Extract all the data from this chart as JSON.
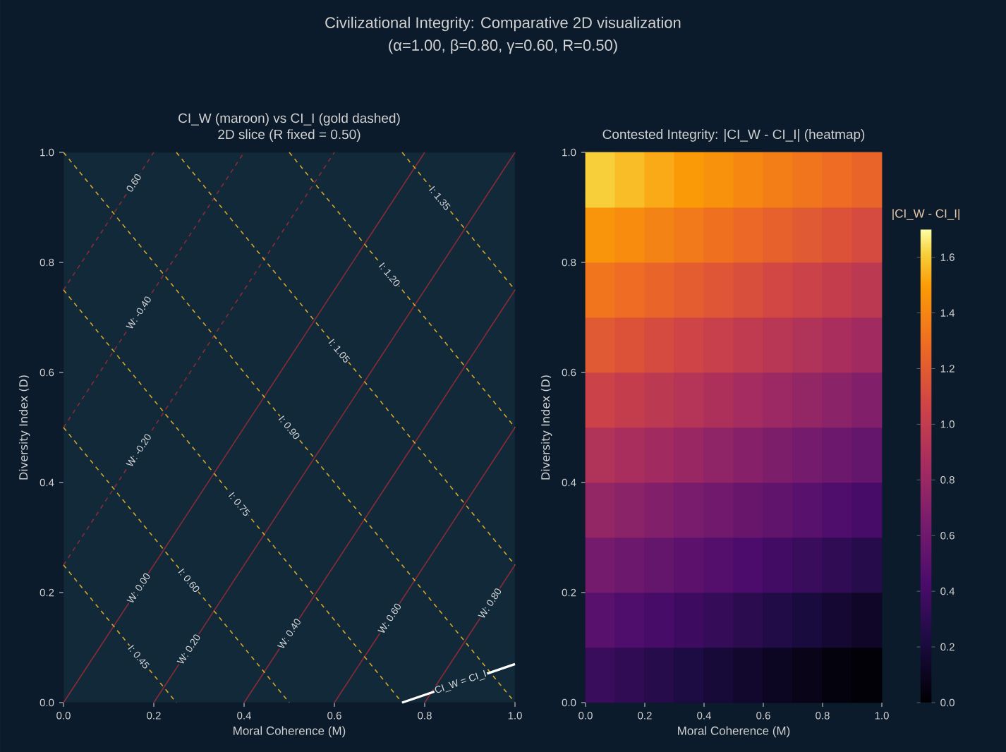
{
  "chart_data": [
    {
      "type": "other",
      "title": "Civilizational Integrity: Comparative 2D visualization",
      "subtitle": "(α=1.00, β=0.80, γ=0.60, R=0.50)"
    },
    {
      "type": "line",
      "title": "CI_W (maroon) vs CI_I (gold dashed)",
      "subtitle": "2D slice (R fixed = 0.50)",
      "xlabel": "Moral Coherence (M)",
      "ylabel": "Diversity Index (D)",
      "xlim": [
        0,
        1
      ],
      "ylim": [
        0,
        1
      ],
      "xticks": [
        {
          "value": 0,
          "label": "0.0"
        },
        {
          "value": 0.2,
          "label": "0.2"
        },
        {
          "value": 0.4,
          "label": "0.4"
        },
        {
          "value": 0.6,
          "label": "0.6"
        },
        {
          "value": 0.8,
          "label": "0.8"
        },
        {
          "value": 1,
          "label": "1.0"
        }
      ],
      "yticks": [
        {
          "value": 0,
          "label": "0.0"
        },
        {
          "value": 0.2,
          "label": "0.2"
        },
        {
          "value": 0.4,
          "label": "0.4"
        },
        {
          "value": 0.6,
          "label": "0.6"
        },
        {
          "value": 0.8,
          "label": "0.8"
        },
        {
          "value": 1,
          "label": "1.0"
        }
      ],
      "series": [
        {
          "name": "0.60",
          "color": "#8b2a35",
          "line_style": "dashed",
          "x": [
            0,
            0.2
          ],
          "values": [
            0.75,
            1
          ]
        },
        {
          "name": "W: -0.40",
          "color": "#8b2a35",
          "line_style": "dashed",
          "x": [
            0,
            0.4
          ],
          "values": [
            0.5,
            1
          ]
        },
        {
          "name": "W: -0.20",
          "color": "#8b2a35",
          "line_style": "dashed",
          "x": [
            0,
            0.6
          ],
          "values": [
            0.25,
            1
          ]
        },
        {
          "name": "W: 0.00",
          "color": "#8b2a35",
          "line_style": "solid",
          "x": [
            0,
            0.8
          ],
          "values": [
            0,
            1
          ]
        },
        {
          "name": "W: 0.20",
          "color": "#8b2a35",
          "line_style": "solid",
          "x": [
            0.2,
            1
          ],
          "values": [
            0,
            1
          ]
        },
        {
          "name": "W: 0.40",
          "color": "#8b2a35",
          "line_style": "solid",
          "x": [
            0.4,
            1
          ],
          "values": [
            0,
            0.75
          ]
        },
        {
          "name": "W: 0.60",
          "color": "#8b2a35",
          "line_style": "solid",
          "x": [
            0.6,
            1
          ],
          "values": [
            0,
            0.5
          ]
        },
        {
          "name": "W: 0.80",
          "color": "#8b2a35",
          "line_style": "solid",
          "x": [
            0.8,
            1
          ],
          "values": [
            0,
            0.25
          ]
        },
        {
          "name": "I: 0.45",
          "color": "#d4a62a",
          "line_style": "dashed",
          "x": [
            0,
            0.25
          ],
          "values": [
            0.25,
            0
          ]
        },
        {
          "name": "I: 0.60",
          "color": "#d4a62a",
          "line_style": "dashed",
          "x": [
            0,
            0.5
          ],
          "values": [
            0.5,
            0
          ]
        },
        {
          "name": "I: 0.75",
          "color": "#d4a62a",
          "line_style": "dashed",
          "x": [
            0,
            0.75
          ],
          "values": [
            0.75,
            0
          ]
        },
        {
          "name": "I: 0.90",
          "color": "#d4a62a",
          "line_style": "dashed",
          "x": [
            0,
            1
          ],
          "values": [
            1,
            0
          ]
        },
        {
          "name": "I: 1.05",
          "color": "#d4a62a",
          "line_style": "dashed",
          "x": [
            0.25,
            1
          ],
          "values": [
            1,
            0.25
          ]
        },
        {
          "name": "I: 1.20",
          "color": "#d4a62a",
          "line_style": "dashed",
          "x": [
            0.5,
            1
          ],
          "values": [
            1,
            0.5
          ]
        },
        {
          "name": "I: 1.35",
          "color": "#d4a62a",
          "line_style": "dashed",
          "x": [
            0.75,
            1
          ],
          "values": [
            1,
            0.75
          ]
        },
        {
          "name": "CI_W = CI_I",
          "color": "#ffffff",
          "line_style": "solid",
          "x": [
            0.75,
            1
          ],
          "values": [
            0,
            0.07
          ]
        }
      ]
    },
    {
      "type": "heatmap",
      "title": "Contested Integrity: |CI_W - CI_I| (heatmap)",
      "xlabel": "Moral Coherence (M)",
      "ylabel": "Diversity Index (D)",
      "clabel": "|CI_W - CI_I|",
      "xlim": [
        0,
        1
      ],
      "ylim": [
        0,
        1
      ],
      "xticks": [
        {
          "value": 0,
          "label": "0.0"
        },
        {
          "value": 0.2,
          "label": "0.2"
        },
        {
          "value": 0.4,
          "label": "0.4"
        },
        {
          "value": 0.6,
          "label": "0.6"
        },
        {
          "value": 0.8,
          "label": "0.8"
        },
        {
          "value": 1,
          "label": "1.0"
        }
      ],
      "yticks": [
        {
          "value": 0,
          "label": "0.0"
        },
        {
          "value": 0.2,
          "label": "0.2"
        },
        {
          "value": 0.4,
          "label": "0.4"
        },
        {
          "value": 0.6,
          "label": "0.6"
        },
        {
          "value": 0.8,
          "label": "0.8"
        },
        {
          "value": 1,
          "label": "1.0"
        }
      ],
      "clim": [
        0,
        1.7
      ],
      "cticks": [
        {
          "value": 0,
          "label": "0.0"
        },
        {
          "value": 0.2,
          "label": "0.2"
        },
        {
          "value": 0.4,
          "label": "0.4"
        },
        {
          "value": 0.6,
          "label": "0.6"
        },
        {
          "value": 0.8,
          "label": "0.8"
        },
        {
          "value": 1,
          "label": "1.0"
        },
        {
          "value": 1.2,
          "label": "1.2"
        },
        {
          "value": 1.4,
          "label": "1.4"
        },
        {
          "value": 1.6,
          "label": "1.6"
        }
      ],
      "cells": [
        [
          1.61,
          1.57,
          1.53,
          1.49,
          1.45,
          1.41,
          1.37,
          1.33,
          1.29,
          1.25
        ],
        [
          1.47,
          1.43,
          1.39,
          1.35,
          1.31,
          1.27,
          1.23,
          1.19,
          1.15,
          1.11
        ],
        [
          1.33,
          1.29,
          1.25,
          1.21,
          1.17,
          1.13,
          1.09,
          1.05,
          1.01,
          0.97
        ],
        [
          1.19,
          1.15,
          1.11,
          1.07,
          1.03,
          0.99,
          0.95,
          0.91,
          0.87,
          0.83
        ],
        [
          1.05,
          1.01,
          0.97,
          0.93,
          0.89,
          0.85,
          0.81,
          0.77,
          0.73,
          0.69
        ],
        [
          0.91,
          0.87,
          0.83,
          0.79,
          0.75,
          0.71,
          0.67,
          0.63,
          0.59,
          0.55
        ],
        [
          0.77,
          0.73,
          0.69,
          0.65,
          0.61,
          0.57,
          0.53,
          0.49,
          0.45,
          0.41
        ],
        [
          0.63,
          0.59,
          0.55,
          0.51,
          0.47,
          0.43,
          0.39,
          0.35,
          0.31,
          0.27
        ],
        [
          0.49,
          0.45,
          0.41,
          0.37,
          0.33,
          0.29,
          0.25,
          0.21,
          0.17,
          0.13
        ],
        [
          0.35,
          0.31,
          0.27,
          0.23,
          0.19,
          0.15,
          0.11,
          0.07,
          0.03,
          0.01
        ]
      ]
    }
  ]
}
